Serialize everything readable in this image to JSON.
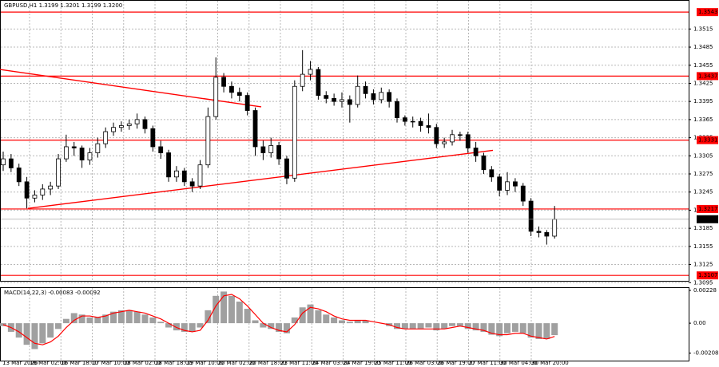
{
  "chart_data": [
    {
      "type": "candlestick",
      "title": "GBPUSD,H1  1.3199 1.3201 1.3199 1.3200",
      "x_labels": [
        "13 Mar 2026",
        "16 Mar 02:00",
        "16 Mar 18:00",
        "17 Mar 10:00",
        "18 Mar 02:00",
        "18 Mar 18:00",
        "19 Mar 10:00",
        "20 Mar 02:00",
        "20 Mar 18:00",
        "23 Mar 11:00",
        "24 Mar 03:00",
        "24 Mar 19:00",
        "25 Mar 11:00",
        "26 Mar 03:00",
        "26 Mar 19:00",
        "27 Mar 11:00",
        "30 Mar 04:00",
        "30 Mar 20:00"
      ],
      "open": [
        1.329,
        1.33,
        1.3285,
        1.3262,
        1.3235,
        1.324,
        1.325,
        1.3255,
        1.33,
        1.332,
        1.3318,
        1.3298,
        1.331,
        1.3325,
        1.3345,
        1.3352,
        1.3355,
        1.3358,
        1.3365,
        1.335,
        1.332,
        1.331,
        1.327,
        1.328,
        1.3262,
        1.3255,
        1.329,
        1.337,
        1.3435,
        1.342,
        1.341,
        1.3405,
        1.338,
        1.332,
        1.331,
        1.3322,
        1.33,
        1.3268,
        1.342,
        1.344,
        1.3448,
        1.3405,
        1.34,
        1.3395,
        1.3398,
        1.339,
        1.342,
        1.3408,
        1.3398,
        1.341,
        1.3395,
        1.3368,
        1.3362,
        1.3362,
        1.3355,
        1.3352,
        1.3325,
        1.3328,
        1.334,
        1.334,
        1.3318,
        1.3305,
        1.3282,
        1.327,
        1.3248,
        1.3262,
        1.3255,
        1.323,
        1.318,
        1.3178,
        1.3172
      ],
      "high": [
        1.3312,
        1.3308,
        1.3292,
        1.327,
        1.3248,
        1.3258,
        1.3262,
        1.3308,
        1.334,
        1.3328,
        1.3322,
        1.3318,
        1.3335,
        1.3352,
        1.336,
        1.3362,
        1.3365,
        1.3375,
        1.337,
        1.3355,
        1.333,
        1.3315,
        1.3288,
        1.3285,
        1.3268,
        1.3298,
        1.3385,
        1.3468,
        1.3442,
        1.3428,
        1.3418,
        1.341,
        1.3385,
        1.333,
        1.3335,
        1.3328,
        1.3305,
        1.343,
        1.348,
        1.3462,
        1.3452,
        1.3412,
        1.3408,
        1.341,
        1.3405,
        1.3438,
        1.3428,
        1.3415,
        1.3418,
        1.3415,
        1.34,
        1.3372,
        1.337,
        1.3368,
        1.3375,
        1.3358,
        1.3335,
        1.3348,
        1.3345,
        1.3345,
        1.3328,
        1.331,
        1.3288,
        1.3275,
        1.3278,
        1.3268,
        1.326,
        1.3235,
        1.3188,
        1.3182,
        1.3222
      ],
      "low": [
        1.328,
        1.3278,
        1.3255,
        1.3218,
        1.3228,
        1.3232,
        1.324,
        1.325,
        1.3295,
        1.3305,
        1.3285,
        1.329,
        1.3302,
        1.3318,
        1.3338,
        1.3345,
        1.3348,
        1.335,
        1.3342,
        1.3312,
        1.33,
        1.3262,
        1.3262,
        1.3255,
        1.3245,
        1.325,
        1.3285,
        1.3365,
        1.341,
        1.34,
        1.3395,
        1.3372,
        1.3305,
        1.3298,
        1.3302,
        1.329,
        1.3258,
        1.3262,
        1.3412,
        1.343,
        1.3398,
        1.3392,
        1.3388,
        1.3385,
        1.336,
        1.3385,
        1.34,
        1.339,
        1.3392,
        1.3385,
        1.336,
        1.3355,
        1.3352,
        1.3345,
        1.3342,
        1.3318,
        1.3318,
        1.3322,
        1.333,
        1.331,
        1.3295,
        1.3275,
        1.3262,
        1.3238,
        1.324,
        1.3245,
        1.3222,
        1.3172,
        1.317,
        1.3158,
        1.3168
      ],
      "close": [
        1.33,
        1.3285,
        1.3262,
        1.3235,
        1.324,
        1.325,
        1.3255,
        1.33,
        1.332,
        1.3318,
        1.3298,
        1.331,
        1.3325,
        1.3345,
        1.3352,
        1.3355,
        1.3358,
        1.3365,
        1.335,
        1.332,
        1.331,
        1.327,
        1.328,
        1.3262,
        1.3255,
        1.329,
        1.337,
        1.3435,
        1.342,
        1.341,
        1.3405,
        1.338,
        1.332,
        1.331,
        1.3322,
        1.33,
        1.3268,
        1.342,
        1.344,
        1.3448,
        1.3405,
        1.34,
        1.3395,
        1.3398,
        1.339,
        1.342,
        1.3408,
        1.3398,
        1.341,
        1.3395,
        1.3368,
        1.3362,
        1.3362,
        1.3355,
        1.3352,
        1.3325,
        1.3328,
        1.334,
        1.334,
        1.3318,
        1.3305,
        1.3282,
        1.327,
        1.3248,
        1.3262,
        1.3255,
        1.323,
        1.318,
        1.3178,
        1.3172,
        1.32
      ],
      "ylim": [
        1.3098,
        1.3563
      ],
      "yticks": [
        1.3515,
        1.3485,
        1.3455,
        1.3425,
        1.3395,
        1.3365,
        1.3335,
        1.3305,
        1.3275,
        1.3245,
        1.3215,
        1.3185,
        1.3155,
        1.3125,
        1.3095
      ],
      "levels": [
        1.3543,
        1.3437,
        1.3331,
        1.3217,
        1.3107
      ],
      "level_color": "#ff0000",
      "current_price": {
        "value": 1.32,
        "label": "1.3200"
      },
      "trendlines": [
        [
          1.3448,
          1.3386
        ],
        [
          1.3218,
          1.3314
        ]
      ],
      "grid": true
    },
    {
      "type": "macd",
      "title": "MACD(14,22,3) -0.00083 -0.00092",
      "histogram": [
        -0.0002,
        -0.0006,
        -0.001,
        -0.0015,
        -0.0018,
        -0.0014,
        -0.001,
        -0.0004,
        0.0003,
        0.0007,
        0.0006,
        0.0004,
        0.0004,
        0.0006,
        0.0008,
        0.0009,
        0.0009,
        0.0008,
        0.0006,
        0.0004,
        0.0001,
        -0.0003,
        -0.0005,
        -0.0006,
        -0.0006,
        -0.0003,
        0.0009,
        0.0019,
        0.0022,
        0.0019,
        0.0015,
        0.001,
        0.0002,
        -0.0003,
        -0.0004,
        -0.0006,
        -0.0007,
        0.0004,
        0.0011,
        0.0013,
        0.0009,
        0.0006,
        0.0004,
        0.0002,
        0.0001,
        0.0002,
        0.0002,
        0.0,
        0.0,
        -0.0002,
        -0.0004,
        -0.0004,
        -0.0004,
        -0.0004,
        -0.0003,
        -0.0005,
        -0.0004,
        -0.0002,
        -0.0002,
        -0.0004,
        -0.0005,
        -0.0006,
        -0.0008,
        -0.0009,
        -0.0007,
        -0.0006,
        -0.0007,
        -0.001,
        -0.0011,
        -0.0011,
        -0.00083
      ],
      "signal": [
        -0.0001,
        -0.0003,
        -0.0006,
        -0.001,
        -0.0014,
        -0.0015,
        -0.0013,
        -0.0009,
        -0.0003,
        0.0002,
        0.0005,
        0.0005,
        0.0004,
        0.0005,
        0.0007,
        0.0008,
        0.0009,
        0.0008,
        0.0007,
        0.0005,
        0.0003,
        0.0,
        -0.0003,
        -0.0005,
        -0.0006,
        -0.0005,
        0.0002,
        0.0012,
        0.0019,
        0.002,
        0.0017,
        0.0012,
        0.0006,
        0.0,
        -0.0003,
        -0.0005,
        -0.0006,
        -0.0001,
        0.0007,
        0.0011,
        0.001,
        0.0008,
        0.0005,
        0.0003,
        0.0002,
        0.0002,
        0.0002,
        0.0001,
        0.0,
        -0.0001,
        -0.0003,
        -0.0004,
        -0.0004,
        -0.0004,
        -0.0004,
        -0.0004,
        -0.0004,
        -0.0003,
        -0.0002,
        -0.0003,
        -0.0004,
        -0.0005,
        -0.0007,
        -0.0008,
        -0.0008,
        -0.0007,
        -0.0007,
        -0.0009,
        -0.001,
        -0.0011,
        -0.00092
      ],
      "histogram_color": "#a0a0a0",
      "signal_color": "#ff0000",
      "ylim": [
        -0.0026,
        0.0025
      ],
      "yticks": [
        0.00228,
        {
          "value": 0,
          "label": "0.00"
        },
        -0.00208
      ]
    }
  ]
}
